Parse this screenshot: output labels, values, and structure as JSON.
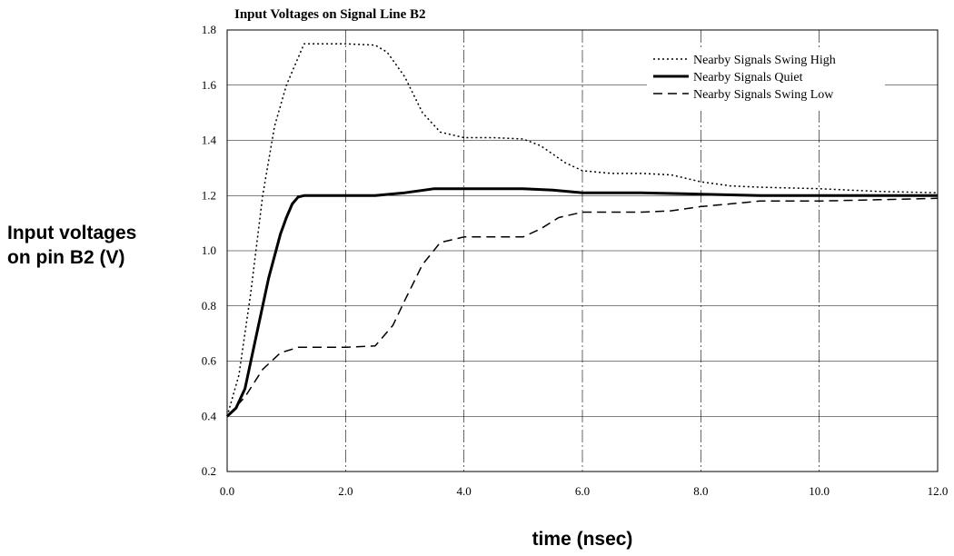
{
  "chart_data": {
    "type": "line",
    "title": "Input Voltages on Signal Line B2",
    "xlabel": "time (nsec)",
    "ylabel_lines": [
      "Input voltages",
      "on pin B2 (V)"
    ],
    "xlim": [
      0,
      12
    ],
    "ylim": [
      0.2,
      1.8
    ],
    "x_ticks": [
      0,
      2,
      4,
      6,
      8,
      10,
      12
    ],
    "x_tick_labels": [
      "0.0",
      "2.0",
      "4.0",
      "6.0",
      "8.0",
      "10.0",
      "12.0"
    ],
    "y_ticks": [
      0.2,
      0.4,
      0.6,
      0.8,
      1.0,
      1.2,
      1.4,
      1.6,
      1.8
    ],
    "y_tick_labels": [
      "0.2",
      "0.4",
      "0.6",
      "0.8",
      "1.0",
      "1.2",
      "1.4",
      "1.6",
      "1.8"
    ],
    "grid": true,
    "legend_position": "top-right",
    "series": [
      {
        "name": "Nearby Signals Swing High",
        "dash": "dotted",
        "x": [
          0,
          0.2,
          0.4,
          0.6,
          0.8,
          1.0,
          1.2,
          1.3,
          1.5,
          2.0,
          2.5,
          2.7,
          3.0,
          3.3,
          3.6,
          4.0,
          4.5,
          5.0,
          5.3,
          5.7,
          6.0,
          6.5,
          7.0,
          7.5,
          8.0,
          8.5,
          9.0,
          10.0,
          11.0,
          12.0
        ],
        "y": [
          0.4,
          0.55,
          0.85,
          1.2,
          1.45,
          1.6,
          1.7,
          1.75,
          1.75,
          1.75,
          1.745,
          1.72,
          1.63,
          1.5,
          1.43,
          1.41,
          1.41,
          1.405,
          1.38,
          1.32,
          1.29,
          1.28,
          1.28,
          1.275,
          1.25,
          1.235,
          1.23,
          1.225,
          1.215,
          1.21
        ]
      },
      {
        "name": "Nearby Signals Quiet",
        "dash": "solid",
        "x": [
          0,
          0.15,
          0.3,
          0.5,
          0.7,
          0.9,
          1.0,
          1.1,
          1.2,
          1.3,
          1.5,
          2.0,
          2.5,
          3.0,
          3.5,
          4.0,
          5.0,
          5.5,
          6.0,
          7.0,
          8.0,
          9.0,
          10.0,
          11.0,
          12.0
        ],
        "y": [
          0.4,
          0.43,
          0.5,
          0.7,
          0.9,
          1.06,
          1.12,
          1.17,
          1.195,
          1.2,
          1.2,
          1.2,
          1.2,
          1.21,
          1.225,
          1.225,
          1.225,
          1.22,
          1.21,
          1.21,
          1.205,
          1.2,
          1.2,
          1.2,
          1.2
        ]
      },
      {
        "name": "Nearby Signals Swing Low",
        "dash": "dashed",
        "x": [
          0,
          0.3,
          0.6,
          0.9,
          1.2,
          1.5,
          2.0,
          2.5,
          2.8,
          3.0,
          3.3,
          3.6,
          4.0,
          4.5,
          5.0,
          5.3,
          5.6,
          6.0,
          6.5,
          7.0,
          7.5,
          8.0,
          8.5,
          9.0,
          10.0,
          11.0,
          12.0
        ],
        "y": [
          0.4,
          0.47,
          0.57,
          0.63,
          0.65,
          0.65,
          0.65,
          0.655,
          0.73,
          0.82,
          0.95,
          1.03,
          1.05,
          1.05,
          1.05,
          1.08,
          1.12,
          1.14,
          1.14,
          1.14,
          1.145,
          1.16,
          1.17,
          1.18,
          1.18,
          1.185,
          1.19
        ]
      }
    ]
  }
}
